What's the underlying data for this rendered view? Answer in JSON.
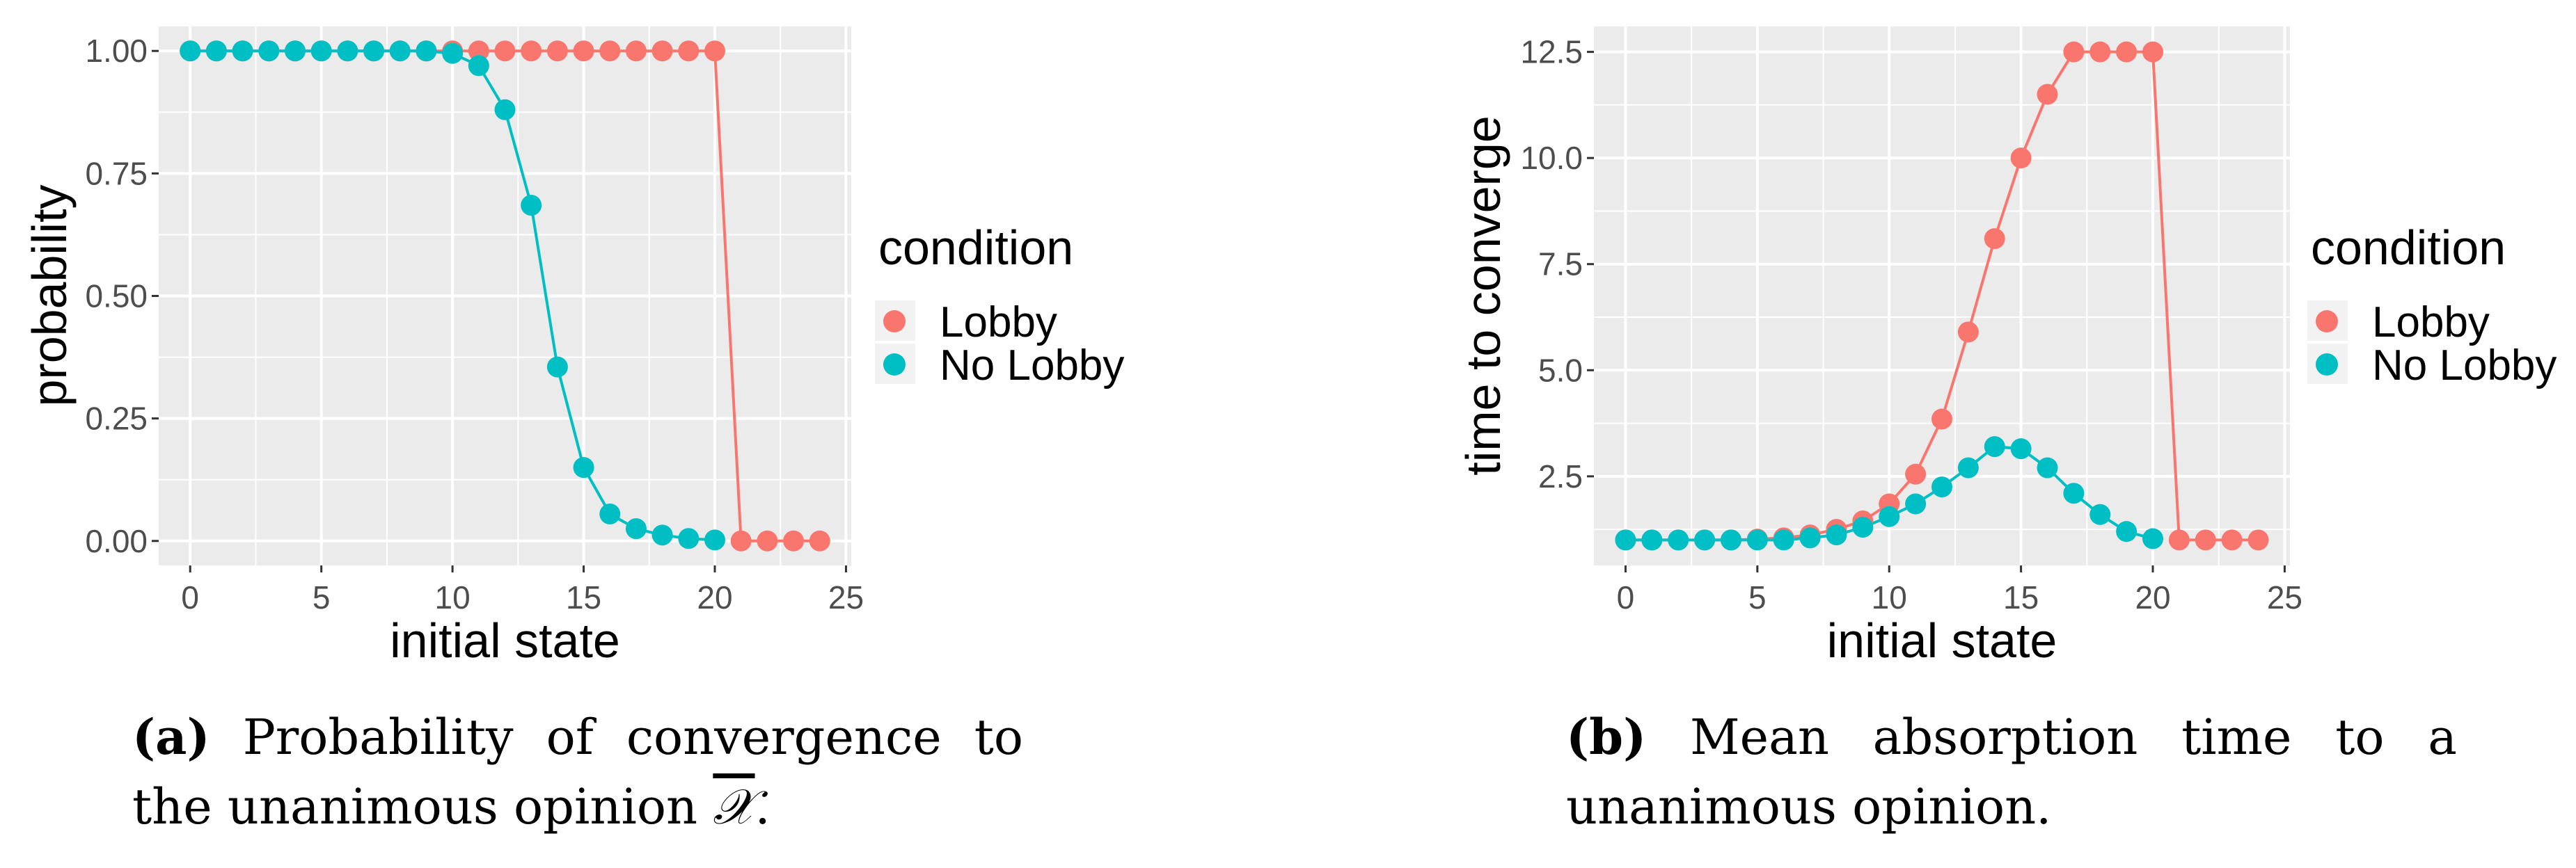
{
  "colors": {
    "lobby": "#F8766D",
    "no_lobby": "#00BFC4",
    "panel_bg": "#EBEBEB",
    "grid": "#FFFFFF"
  },
  "chart_data": [
    {
      "type": "line",
      "xlabel": "initial state",
      "ylabel": "probability",
      "xlim": [
        -1.2,
        25.2
      ],
      "ylim": [
        -0.05,
        1.05
      ],
      "xticks": [
        0,
        5,
        10,
        15,
        20,
        25
      ],
      "xtick_labels": [
        "0",
        "5",
        "10",
        "15",
        "20",
        "25"
      ],
      "yticks": [
        0,
        0.25,
        0.5,
        0.75,
        1
      ],
      "ytick_labels": [
        "0.00",
        "0.25",
        "0.50",
        "0.75",
        "1.00"
      ],
      "legend_title": "condition",
      "legend_position": "right",
      "grid": true,
      "x": [
        0,
        1,
        2,
        3,
        4,
        5,
        6,
        7,
        8,
        9,
        10,
        11,
        12,
        13,
        14,
        15,
        16,
        17,
        18,
        19,
        20,
        21,
        22,
        23,
        24
      ],
      "series": [
        {
          "name": "Lobby",
          "color": "#F8766D",
          "values": [
            1,
            1,
            1,
            1,
            1,
            1,
            1,
            1,
            1,
            1,
            1,
            1,
            1,
            1,
            1,
            1,
            1,
            1,
            1,
            1,
            1,
            0,
            0,
            0,
            0
          ]
        },
        {
          "name": "No Lobby",
          "color": "#00BFC4",
          "values": [
            1,
            1,
            1,
            1,
            1,
            1,
            1,
            1,
            1,
            1,
            0.995,
            0.97,
            0.88,
            0.685,
            0.355,
            0.15,
            0.055,
            0.025,
            0.012,
            0.005,
            0.002,
            null,
            null,
            null,
            null
          ]
        }
      ]
    },
    {
      "type": "line",
      "xlabel": "initial state",
      "ylabel": "time to converge",
      "xlim": [
        -1.2,
        25.2
      ],
      "ylim": [
        0.4,
        13.1
      ],
      "xticks": [
        0,
        5,
        10,
        15,
        20,
        25
      ],
      "xtick_labels": [
        "0",
        "5",
        "10",
        "15",
        "20",
        "25"
      ],
      "yticks": [
        2.5,
        5,
        7.5,
        10,
        12.5
      ],
      "ytick_labels": [
        "2.5",
        "5.0",
        "7.5",
        "10.0",
        "12.5"
      ],
      "legend_title": "condition",
      "legend_position": "right",
      "grid": true,
      "x": [
        0,
        1,
        2,
        3,
        4,
        5,
        6,
        7,
        8,
        9,
        10,
        11,
        12,
        13,
        14,
        15,
        16,
        17,
        18,
        19,
        20,
        21,
        22,
        23,
        24
      ],
      "series": [
        {
          "name": "Lobby",
          "color": "#F8766D",
          "values": [
            1.0,
            1.0,
            1.0,
            1.0,
            1.0,
            1.02,
            1.05,
            1.12,
            1.25,
            1.45,
            1.85,
            2.55,
            3.85,
            5.9,
            8.1,
            10.0,
            11.5,
            12.5,
            12.5,
            12.5,
            12.5,
            1.0,
            1.0,
            1.0,
            1.0
          ]
        },
        {
          "name": "No Lobby",
          "color": "#00BFC4",
          "values": [
            1.0,
            1.0,
            1.0,
            1.0,
            1.0,
            1.0,
            1.0,
            1.05,
            1.12,
            1.3,
            1.55,
            1.85,
            2.25,
            2.7,
            3.2,
            3.15,
            2.7,
            2.1,
            1.6,
            1.2,
            1.03,
            null,
            null,
            null,
            null
          ]
        }
      ]
    }
  ],
  "captions": {
    "a": {
      "label": "(a)",
      "text_1": "Probability of convergence to the unanimous opinion",
      "symbol": "𝒳",
      "text_2": "."
    },
    "b": {
      "label": "(b)",
      "text_1": "Mean absorption time to a unanimous opinion."
    }
  }
}
